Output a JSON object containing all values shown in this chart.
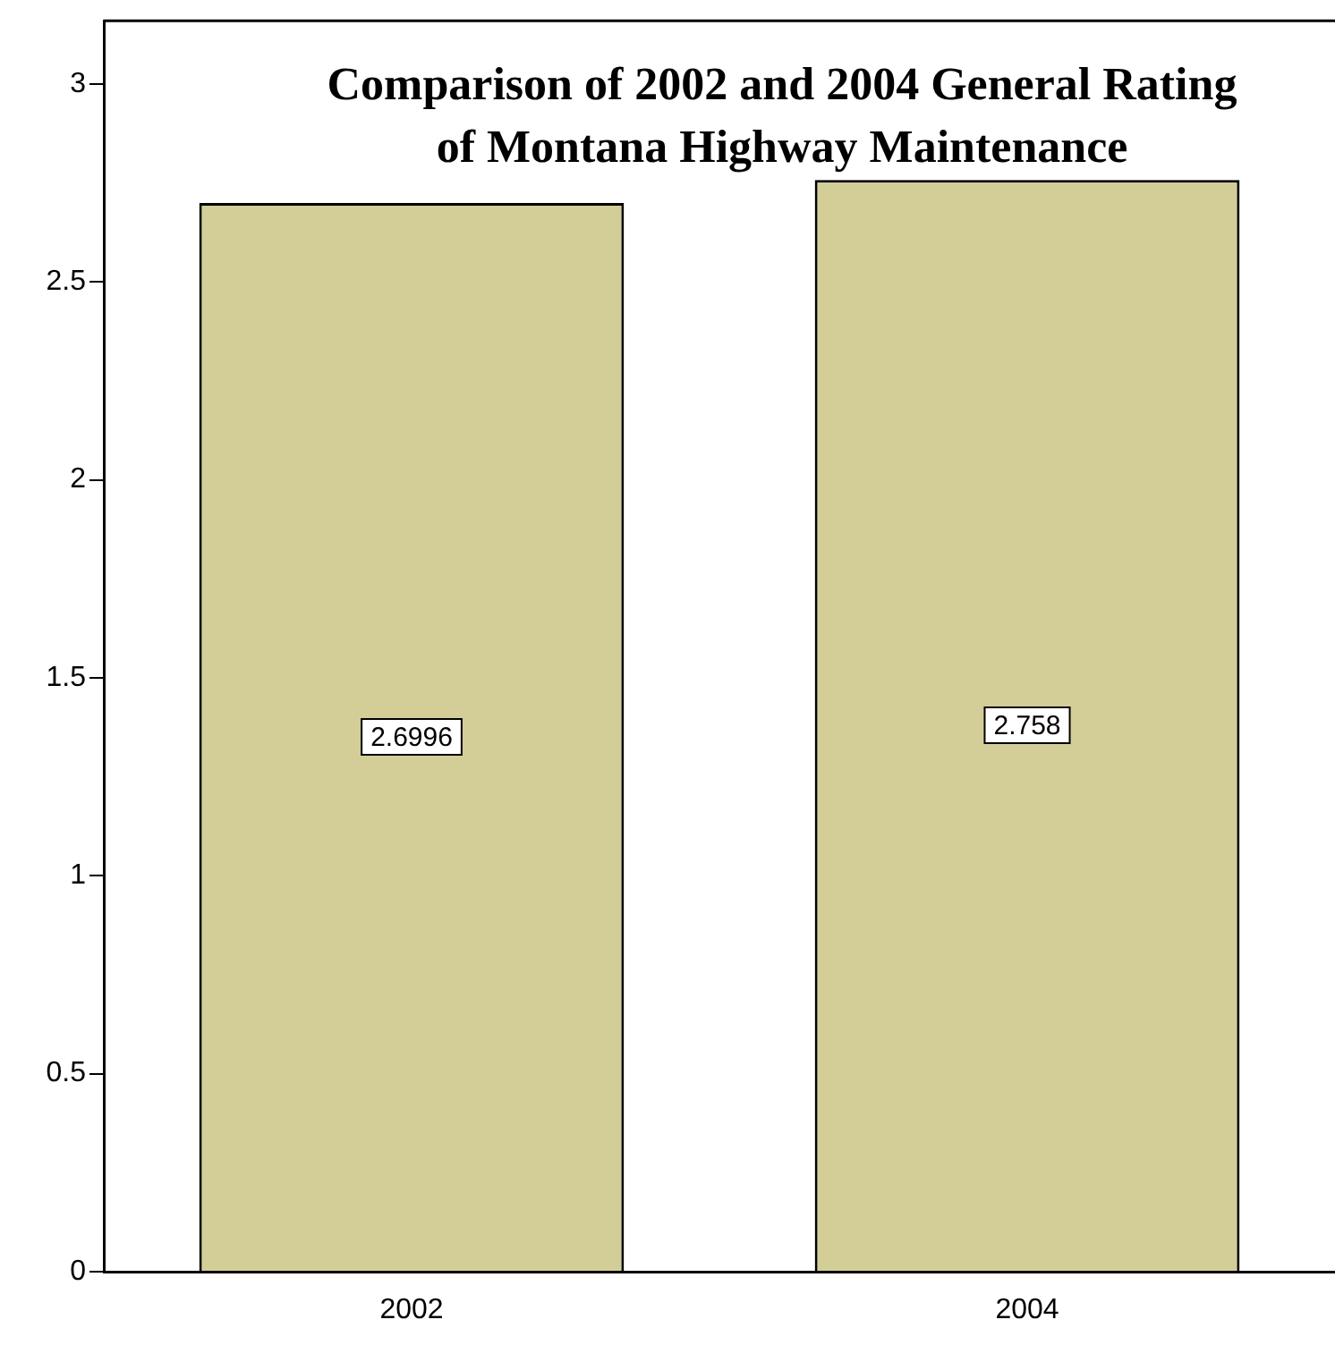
{
  "chart_data": {
    "type": "bar",
    "title": "Comparison of 2002 and 2004 General Rating of Montana Highway Maintenance",
    "categories": [
      "2002",
      "2004"
    ],
    "values": [
      2.6996,
      2.758
    ],
    "color": "#d3cd97",
    "ylim": [
      0,
      3.16
    ],
    "yticks": [
      0,
      0.5,
      1,
      1.5,
      2,
      2.5,
      3
    ],
    "grid": false,
    "legend": false,
    "data_labels": true
  }
}
